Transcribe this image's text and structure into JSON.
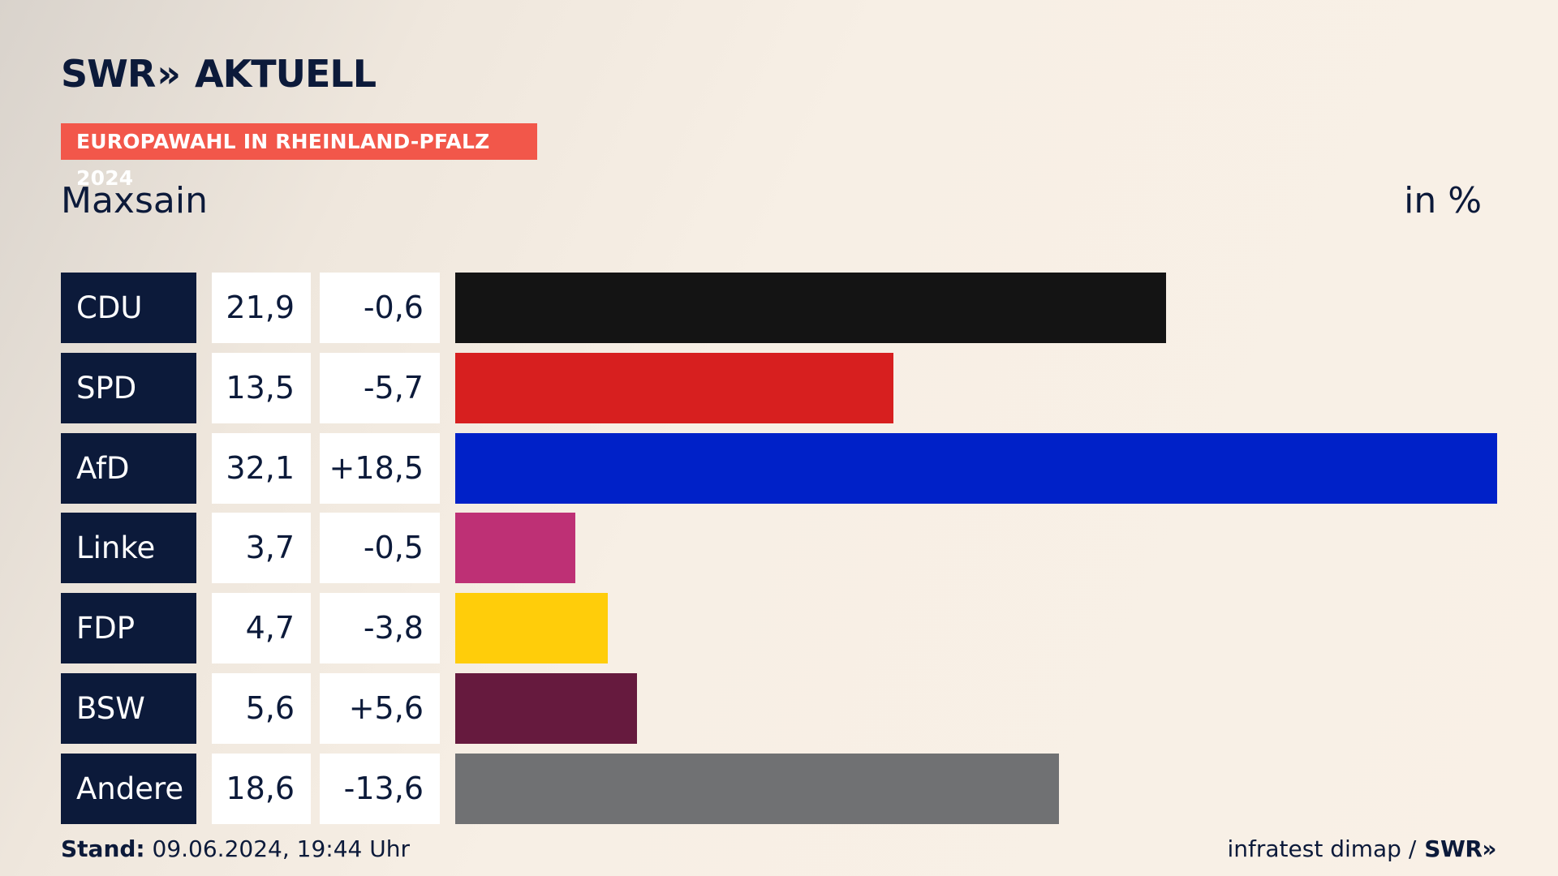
{
  "header": {
    "logo_text": "SWR",
    "logo_chevrons": "»",
    "logo_suffix": "AKTUELL",
    "badge": "EUROPAWAHL IN RHEINLAND-PFALZ 2024",
    "place": "Maxsain",
    "unit": "in %"
  },
  "footer": {
    "stand_label": "Stand:",
    "stand_value": " 09.06.2024, 19:44 Uhr",
    "source": "infratest dimap /",
    "source_logo": "SWR»"
  },
  "chart_data": {
    "type": "bar",
    "orientation": "horizontal",
    "title": "Maxsain",
    "unit": "in %",
    "categories": [
      "CDU",
      "SPD",
      "AfD",
      "Linke",
      "FDP",
      "BSW",
      "Andere"
    ],
    "values": [
      21.9,
      13.5,
      32.1,
      3.7,
      4.7,
      5.6,
      18.6
    ],
    "value_labels": [
      "21,9",
      "13,5",
      "32,1",
      "3,7",
      "4,7",
      "5,6",
      "18,6"
    ],
    "changes": [
      -0.6,
      -5.7,
      18.5,
      -0.5,
      -3.8,
      5.6,
      -13.6
    ],
    "change_labels": [
      "-0,6",
      "-5,7",
      "+18,5",
      "-0,5",
      "-3,8",
      "+5,6",
      "-13,6"
    ],
    "colors": [
      "#141414",
      "#d71f1f",
      "#0021c8",
      "#be3075",
      "#ffcd0a",
      "#661a3e",
      "#707173"
    ],
    "xlim": [
      0,
      32.1
    ]
  }
}
